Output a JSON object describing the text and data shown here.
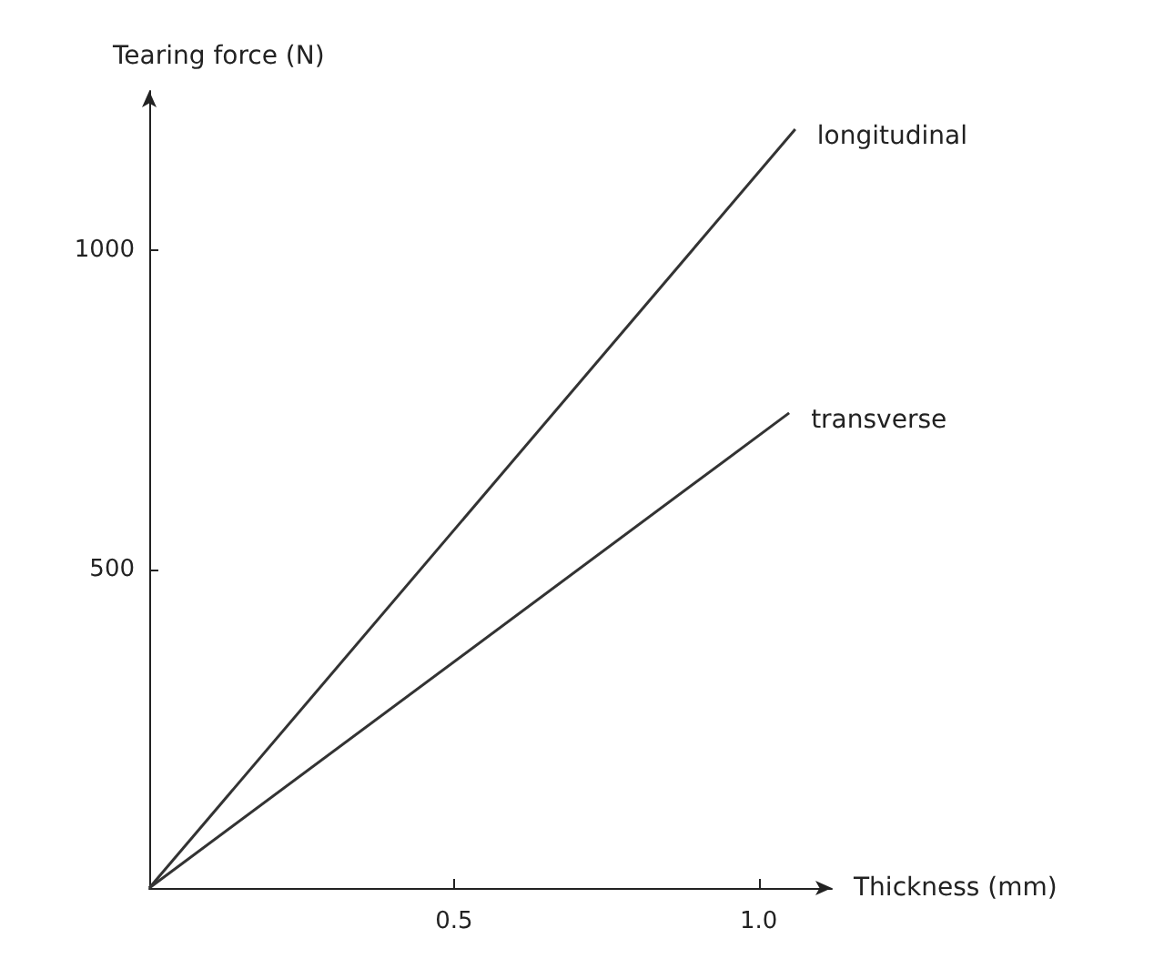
{
  "chart_data": {
    "type": "line",
    "xlabel": "Thickness (mm)",
    "ylabel": "Tearing force (N)",
    "series": [
      {
        "name": "longitudinal",
        "color": "#333333",
        "x": [
          0,
          1.06
        ],
        "values": [
          0,
          1190
        ]
      },
      {
        "name": "transverse",
        "color": "#333333",
        "x": [
          0,
          1.05
        ],
        "values": [
          0,
          745
        ]
      }
    ],
    "xlim": [
      0,
      1.12
    ],
    "xticks": [
      0.5,
      {
        "value": 1,
        "label": "1.0"
      }
    ],
    "ylim": [
      0,
      1250
    ],
    "yticks": [
      500,
      1000
    ],
    "grid": false,
    "legend": false,
    "marker": "none",
    "line_style": "solid"
  }
}
